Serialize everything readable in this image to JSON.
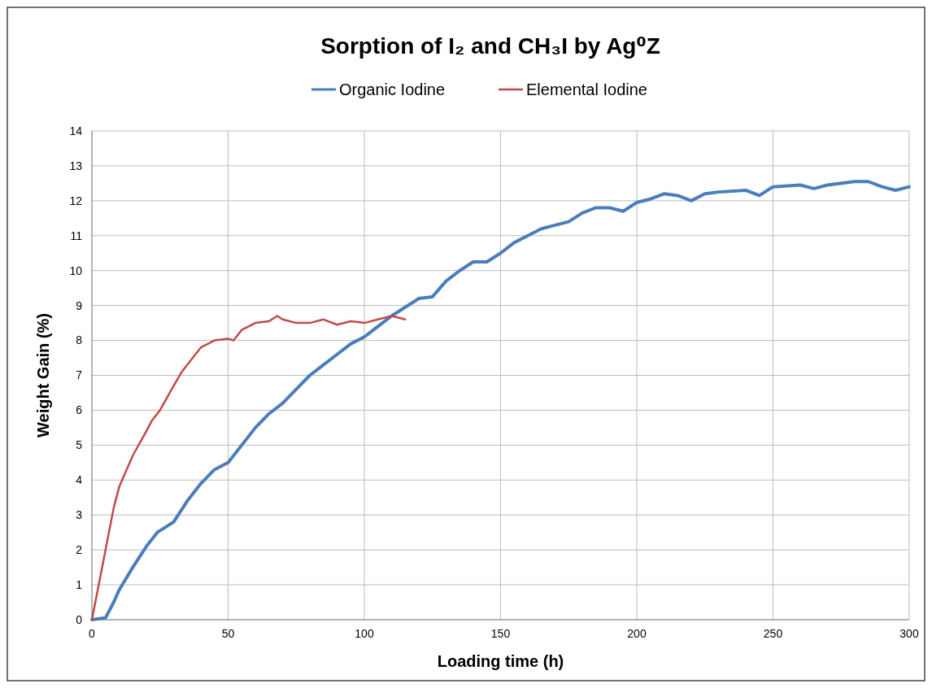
{
  "chart_data": {
    "type": "line",
    "title": "Sorption of I₂ and CH₃I by Ag⁰Z",
    "xlabel": "Loading time (h)",
    "ylabel": "Weight Gain (%)",
    "xlim": [
      0,
      300
    ],
    "xticks": [
      0,
      50,
      100,
      150,
      200,
      250,
      300
    ],
    "ylim": [
      0,
      14
    ],
    "yticks": [
      0,
      1,
      2,
      3,
      4,
      5,
      6,
      7,
      8,
      9,
      10,
      11,
      12,
      13,
      14
    ],
    "grid": true,
    "legend": "top",
    "marker": "none",
    "line_style": "solid",
    "series": [
      {
        "name": "Organic Iodine",
        "color": "#4a7ebb",
        "x": [
          0,
          5,
          8,
          10,
          15,
          20,
          24,
          28,
          30,
          35,
          40,
          45,
          50,
          55,
          60,
          65,
          70,
          75,
          80,
          85,
          90,
          95,
          100,
          105,
          110,
          115,
          120,
          125,
          130,
          135,
          140,
          145,
          150,
          155,
          160,
          165,
          170,
          175,
          180,
          185,
          190,
          195,
          200,
          205,
          210,
          215,
          220,
          225,
          230,
          240,
          245,
          250,
          260,
          265,
          270,
          280,
          285,
          290,
          295,
          300
        ],
        "values": [
          0,
          0.05,
          0.5,
          0.85,
          1.5,
          2.1,
          2.5,
          2.7,
          2.8,
          3.4,
          3.9,
          4.3,
          4.5,
          5.0,
          5.5,
          5.9,
          6.2,
          6.6,
          7.0,
          7.3,
          7.6,
          7.9,
          8.1,
          8.4,
          8.7,
          8.95,
          9.2,
          9.25,
          9.7,
          10.0,
          10.25,
          10.25,
          10.5,
          10.8,
          11.0,
          11.2,
          11.3,
          11.4,
          11.65,
          11.8,
          11.8,
          11.7,
          11.95,
          12.05,
          12.2,
          12.15,
          12.0,
          12.2,
          12.25,
          12.3,
          12.15,
          12.4,
          12.45,
          12.35,
          12.45,
          12.55,
          12.55,
          12.4,
          12.3,
          12.4
        ]
      },
      {
        "name": "Elemental Iodine",
        "color": "#be4b48",
        "x": [
          0,
          2,
          5,
          8,
          10,
          15,
          20,
          22,
          25,
          30,
          33,
          36,
          40,
          45,
          50,
          52,
          55,
          60,
          65,
          68,
          70,
          75,
          80,
          85,
          90,
          95,
          100,
          105,
          110,
          115
        ],
        "values": [
          0,
          0.8,
          2.0,
          3.2,
          3.8,
          4.7,
          5.4,
          5.7,
          6.0,
          6.7,
          7.1,
          7.4,
          7.8,
          8.0,
          8.05,
          8.0,
          8.3,
          8.5,
          8.55,
          8.7,
          8.6,
          8.5,
          8.5,
          8.6,
          8.45,
          8.55,
          8.5,
          8.6,
          8.7,
          8.6
        ]
      }
    ]
  }
}
